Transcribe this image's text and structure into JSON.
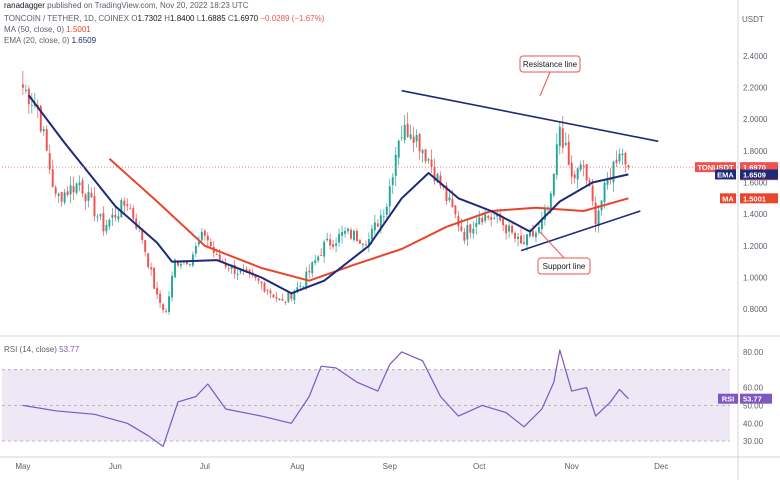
{
  "header": {
    "author": "ranadagger",
    "published": "published on TradingView.com, Nov 20, 2022 18:23 UTC",
    "symbol": "TONCOIN / TETHER, 1D, COINEX",
    "ohlc": {
      "o_label": "O",
      "o": "1.7302",
      "h_label": "H",
      "h": "1.8400",
      "l_label": "L",
      "l": "1.6885",
      "c_label": "C",
      "c": "1.6970",
      "change": "−0.0289 (−1.67%)"
    },
    "ma_label": "MA (50, close, 0)",
    "ma_value": "1.5001",
    "ema_label": "EMA (20, close, 0)",
    "ema_value": "1.6509",
    "rsi_label": "RSI (14, close)",
    "rsi_value": "53.77",
    "currency": "USDT"
  },
  "colors": {
    "up": "#26a69a",
    "down": "#ef5350",
    "ema": "#1e2a78",
    "ma": "#e8452c",
    "rsi": "#7e57c2",
    "rsi_band": "#ede7f6",
    "trend": "#1e2a78",
    "last_price": "#ef5350"
  },
  "chart_data": [
    {
      "type": "candlestick",
      "title": "TONCOIN / TETHER, 1D, COINEX",
      "y_label": "USDT",
      "y_ticks": [
        "2.4000",
        "2.2000",
        "2.0000",
        "1.8000",
        "1.6000",
        "1.4000",
        "1.2000",
        "1.0000",
        "0.8000"
      ],
      "ylim": [
        0.7,
        2.5
      ],
      "x_ticks": [
        "May",
        "Jun",
        "Jul",
        "Aug",
        "Sep",
        "Oct",
        "Nov",
        "Dec"
      ],
      "price_tags": [
        {
          "label": "TONUSDT",
          "value": "1.6970",
          "sub": "05:36:30"
        },
        {
          "label": "EMA",
          "value": "1.6509"
        },
        {
          "label": "MA",
          "value": "1.5001"
        }
      ],
      "annotations": [
        {
          "text": "Resistance line",
          "points": [
            [
              "2022-09-05",
              2.18
            ],
            [
              "2022-11-30",
              1.86
            ]
          ]
        },
        {
          "text": "Support line",
          "points": [
            [
              "2022-10-15",
              1.17
            ],
            [
              "2022-11-24",
              1.42
            ]
          ]
        }
      ],
      "key_points": [
        {
          "date": "2022-05-01",
          "close": 2.2
        },
        {
          "date": "2022-05-06",
          "close": 2.08
        },
        {
          "date": "2022-05-12",
          "close": 1.5
        },
        {
          "date": "2022-05-20",
          "close": 1.6
        },
        {
          "date": "2022-05-28",
          "close": 1.32
        },
        {
          "date": "2022-06-05",
          "close": 1.48
        },
        {
          "date": "2022-06-10",
          "close": 1.25
        },
        {
          "date": "2022-06-15",
          "close": 0.87
        },
        {
          "date": "2022-06-18",
          "close": 0.78
        },
        {
          "date": "2022-06-21",
          "close": 1.1
        },
        {
          "date": "2022-06-26",
          "close": 1.12
        },
        {
          "date": "2022-07-01",
          "close": 1.28
        },
        {
          "date": "2022-07-05",
          "close": 1.12
        },
        {
          "date": "2022-07-12",
          "close": 1.04
        },
        {
          "date": "2022-07-20",
          "close": 0.96
        },
        {
          "date": "2022-07-27",
          "close": 0.84
        },
        {
          "date": "2022-08-03",
          "close": 0.97
        },
        {
          "date": "2022-08-10",
          "close": 1.2
        },
        {
          "date": "2022-08-17",
          "close": 1.28
        },
        {
          "date": "2022-08-25",
          "close": 1.24
        },
        {
          "date": "2022-08-31",
          "close": 1.47
        },
        {
          "date": "2022-09-04",
          "close": 1.9
        },
        {
          "date": "2022-09-08",
          "close": 1.95
        },
        {
          "date": "2022-09-14",
          "close": 1.75
        },
        {
          "date": "2022-09-20",
          "close": 1.5
        },
        {
          "date": "2022-09-26",
          "close": 1.27
        },
        {
          "date": "2022-10-01",
          "close": 1.4
        },
        {
          "date": "2022-10-08",
          "close": 1.36
        },
        {
          "date": "2022-10-15",
          "close": 1.2
        },
        {
          "date": "2022-10-21",
          "close": 1.3
        },
        {
          "date": "2022-10-25",
          "close": 1.48
        },
        {
          "date": "2022-10-28",
          "close": 1.96
        },
        {
          "date": "2022-11-01",
          "close": 1.62
        },
        {
          "date": "2022-11-05",
          "close": 1.7
        },
        {
          "date": "2022-11-09",
          "close": 1.38
        },
        {
          "date": "2022-11-13",
          "close": 1.6
        },
        {
          "date": "2022-11-17",
          "close": 1.82
        },
        {
          "date": "2022-11-20",
          "close": 1.697
        }
      ],
      "ema_points": [
        {
          "date": "2022-05-03",
          "value": 2.15
        },
        {
          "date": "2022-05-15",
          "value": 1.85
        },
        {
          "date": "2022-06-01",
          "value": 1.45
        },
        {
          "date": "2022-06-15",
          "value": 1.22
        },
        {
          "date": "2022-06-20",
          "value": 1.1
        },
        {
          "date": "2022-07-05",
          "value": 1.11
        },
        {
          "date": "2022-07-20",
          "value": 1.0
        },
        {
          "date": "2022-07-30",
          "value": 0.9
        },
        {
          "date": "2022-08-10",
          "value": 0.98
        },
        {
          "date": "2022-08-25",
          "value": 1.2
        },
        {
          "date": "2022-09-05",
          "value": 1.5
        },
        {
          "date": "2022-09-14",
          "value": 1.66
        },
        {
          "date": "2022-09-24",
          "value": 1.5
        },
        {
          "date": "2022-10-05",
          "value": 1.42
        },
        {
          "date": "2022-10-18",
          "value": 1.29
        },
        {
          "date": "2022-10-28",
          "value": 1.48
        },
        {
          "date": "2022-11-08",
          "value": 1.6
        },
        {
          "date": "2022-11-20",
          "value": 1.651
        }
      ],
      "ma_points": [
        {
          "date": "2022-05-30",
          "value": 1.75
        },
        {
          "date": "2022-06-15",
          "value": 1.48
        },
        {
          "date": "2022-07-01",
          "value": 1.2
        },
        {
          "date": "2022-07-20",
          "value": 1.06
        },
        {
          "date": "2022-08-05",
          "value": 0.98
        },
        {
          "date": "2022-08-20",
          "value": 1.08
        },
        {
          "date": "2022-09-05",
          "value": 1.18
        },
        {
          "date": "2022-09-20",
          "value": 1.32
        },
        {
          "date": "2022-10-05",
          "value": 1.42
        },
        {
          "date": "2022-10-20",
          "value": 1.44
        },
        {
          "date": "2022-11-05",
          "value": 1.42
        },
        {
          "date": "2022-11-20",
          "value": 1.5
        }
      ]
    },
    {
      "type": "line",
      "title": "RSI (14, close)",
      "y_ticks": [
        "80.00",
        "60.00",
        "50.00",
        "40.00",
        "30.00"
      ],
      "ylim": [
        25,
        85
      ],
      "bands": [
        30,
        70
      ],
      "points": [
        {
          "date": "2022-05-01",
          "value": 50
        },
        {
          "date": "2022-05-12",
          "value": 47
        },
        {
          "date": "2022-05-25",
          "value": 45
        },
        {
          "date": "2022-06-05",
          "value": 40
        },
        {
          "date": "2022-06-12",
          "value": 33
        },
        {
          "date": "2022-06-17",
          "value": 27
        },
        {
          "date": "2022-06-22",
          "value": 52
        },
        {
          "date": "2022-06-28",
          "value": 55
        },
        {
          "date": "2022-07-02",
          "value": 62
        },
        {
          "date": "2022-07-08",
          "value": 48
        },
        {
          "date": "2022-07-20",
          "value": 44
        },
        {
          "date": "2022-07-30",
          "value": 40
        },
        {
          "date": "2022-08-05",
          "value": 55
        },
        {
          "date": "2022-08-09",
          "value": 72
        },
        {
          "date": "2022-08-14",
          "value": 71
        },
        {
          "date": "2022-08-21",
          "value": 63
        },
        {
          "date": "2022-08-28",
          "value": 58
        },
        {
          "date": "2022-09-01",
          "value": 73
        },
        {
          "date": "2022-09-05",
          "value": 80
        },
        {
          "date": "2022-09-12",
          "value": 75
        },
        {
          "date": "2022-09-18",
          "value": 55
        },
        {
          "date": "2022-09-24",
          "value": 44
        },
        {
          "date": "2022-10-02",
          "value": 50
        },
        {
          "date": "2022-10-10",
          "value": 46
        },
        {
          "date": "2022-10-16",
          "value": 38
        },
        {
          "date": "2022-10-22",
          "value": 48
        },
        {
          "date": "2022-10-26",
          "value": 63
        },
        {
          "date": "2022-10-28",
          "value": 81
        },
        {
          "date": "2022-11-01",
          "value": 58
        },
        {
          "date": "2022-11-06",
          "value": 60
        },
        {
          "date": "2022-11-09",
          "value": 44
        },
        {
          "date": "2022-11-14",
          "value": 52
        },
        {
          "date": "2022-11-17",
          "value": 59
        },
        {
          "date": "2022-11-20",
          "value": 53.77
        }
      ]
    }
  ]
}
